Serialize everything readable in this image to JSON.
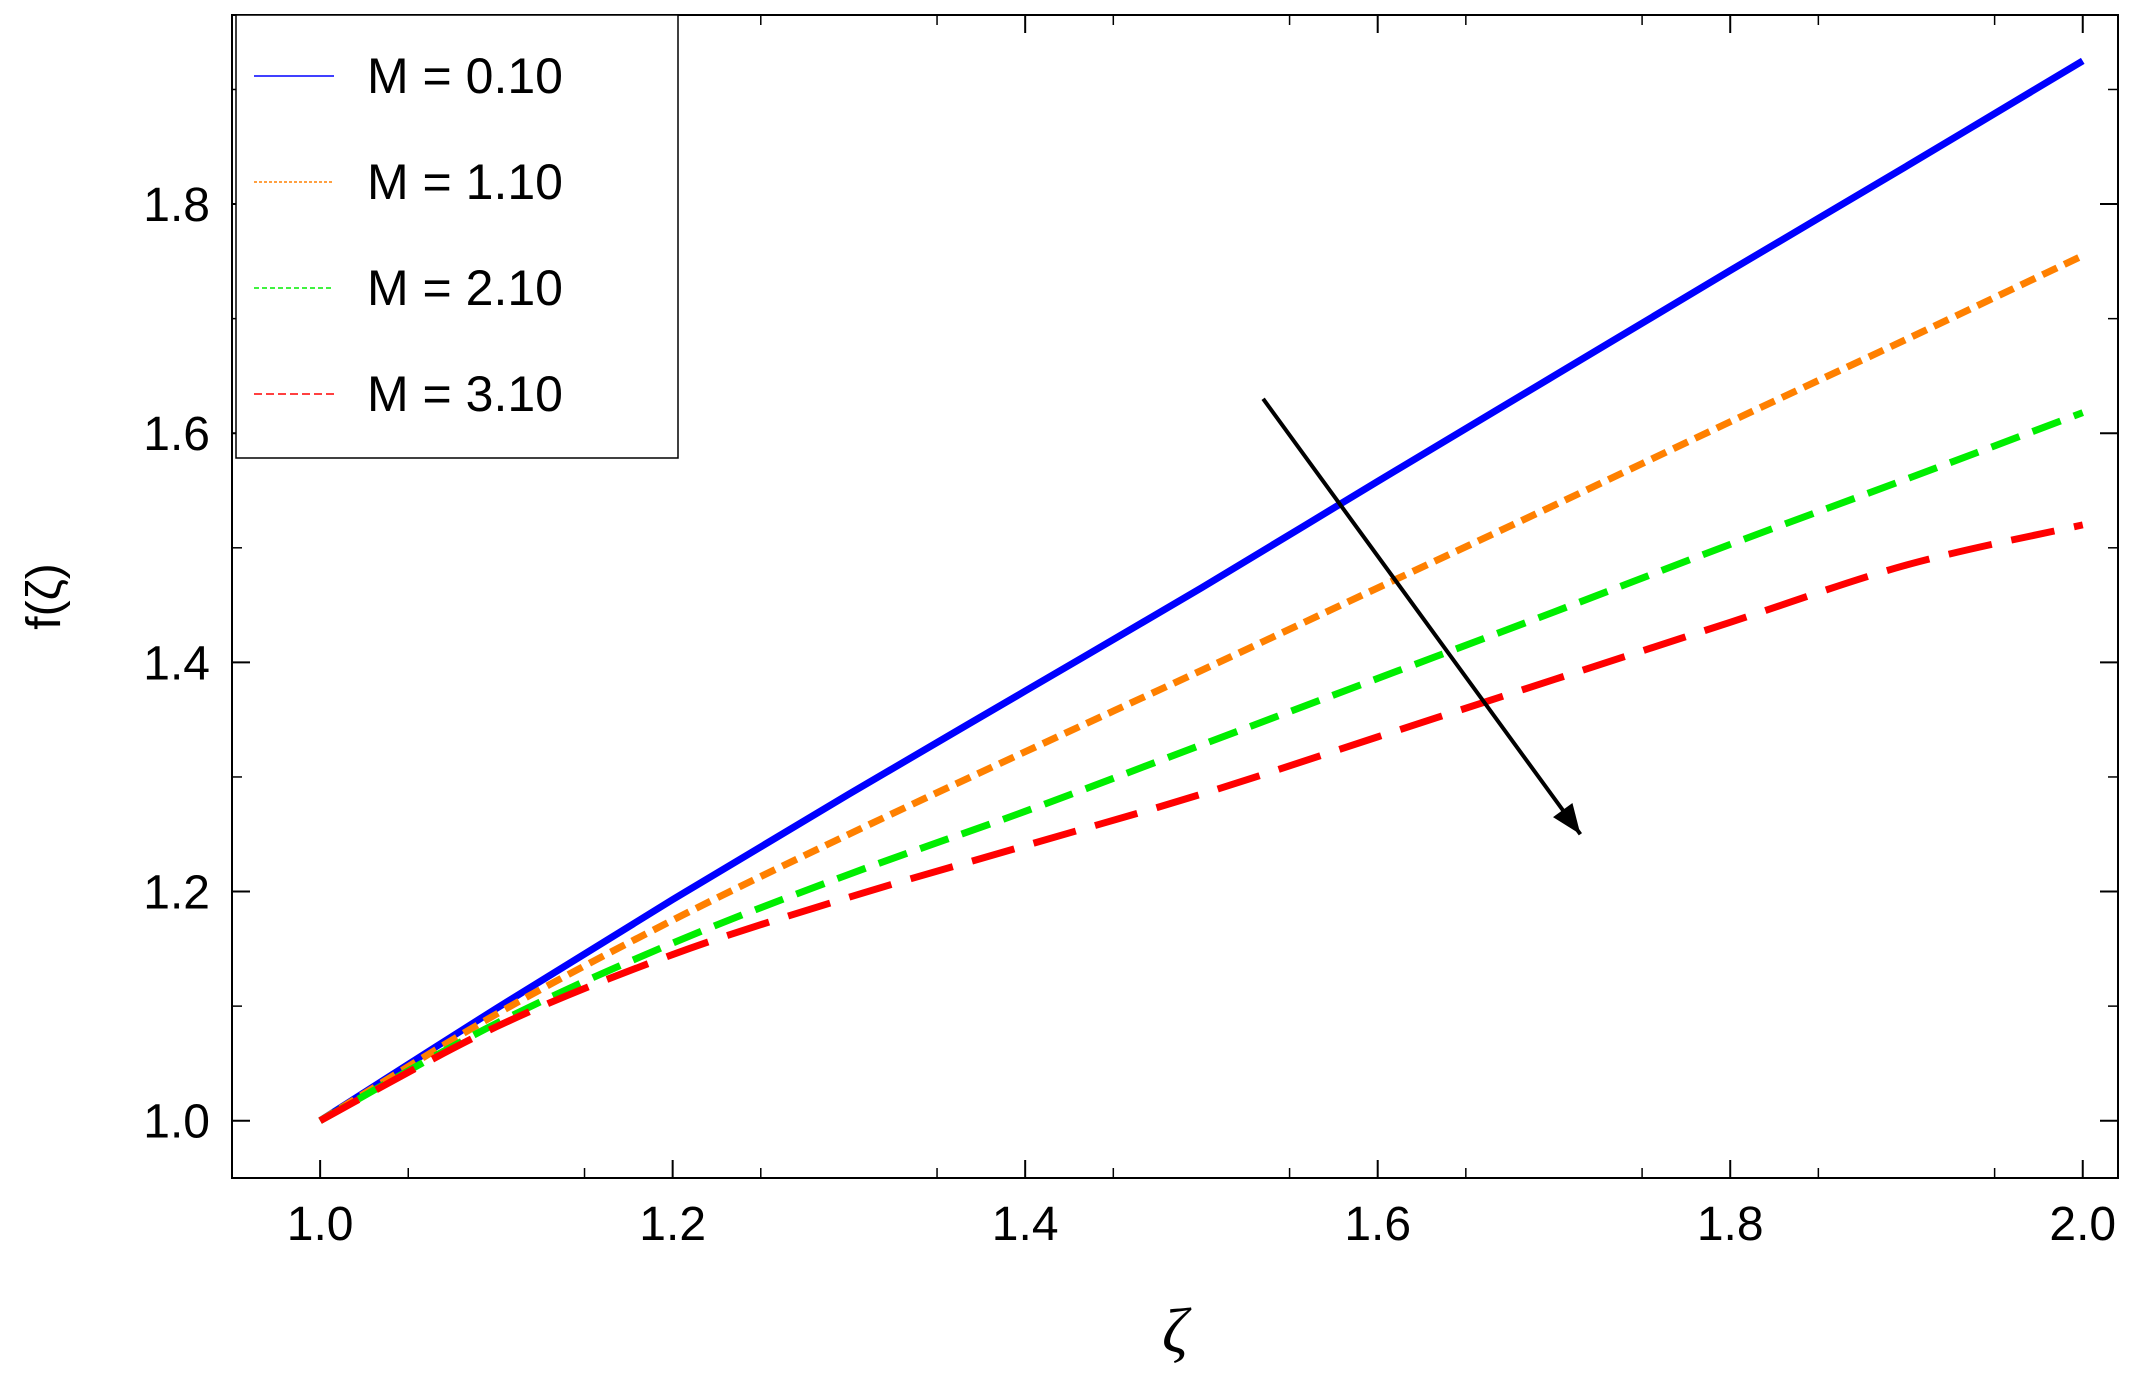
{
  "chart_data": {
    "type": "line",
    "title": "",
    "xlabel": "ζ",
    "ylabel": "f(ζ)",
    "xlim": [
      0.95,
      2.02
    ],
    "ylim": [
      0.95,
      1.965
    ],
    "x_ticks": [
      "1.0",
      "1.2",
      "1.4",
      "1.6",
      "1.8",
      "2.0"
    ],
    "y_ticks": [
      "1.0",
      "1.2",
      "1.4",
      "1.6",
      "1.8"
    ],
    "legend_position": "top-left",
    "series": [
      {
        "name": "M = 0.10",
        "color": "#0000ff",
        "dash": "solid",
        "x": [
          1.0,
          1.1,
          1.2,
          1.3,
          1.4,
          1.5,
          1.6,
          1.7,
          1.8,
          1.9,
          2.0
        ],
        "y": [
          1.0,
          1.098,
          1.193,
          1.285,
          1.375,
          1.465,
          1.558,
          1.65,
          1.742,
          1.833,
          1.925
        ]
      },
      {
        "name": "M = 1.10",
        "color": "#ff8000",
        "dash": "short",
        "x": [
          1.0,
          1.1,
          1.2,
          1.3,
          1.4,
          1.5,
          1.6,
          1.7,
          1.8,
          1.9,
          2.0
        ],
        "y": [
          1.0,
          1.093,
          1.175,
          1.25,
          1.322,
          1.393,
          1.465,
          1.537,
          1.61,
          1.682,
          1.755
        ]
      },
      {
        "name": "M = 2.10",
        "color": "#00ee00",
        "dash": "medium",
        "x": [
          1.0,
          1.1,
          1.2,
          1.3,
          1.4,
          1.5,
          1.6,
          1.7,
          1.8,
          1.9,
          2.0
        ],
        "y": [
          1.0,
          1.085,
          1.155,
          1.215,
          1.27,
          1.328,
          1.386,
          1.444,
          1.503,
          1.56,
          1.618
        ]
      },
      {
        "name": "M = 3.10",
        "color": "#ff0000",
        "dash": "long",
        "x": [
          1.0,
          1.1,
          1.2,
          1.3,
          1.4,
          1.5,
          1.6,
          1.7,
          1.8,
          1.9,
          2.0
        ],
        "y": [
          1.0,
          1.082,
          1.145,
          1.195,
          1.24,
          1.285,
          1.335,
          1.385,
          1.435,
          1.485,
          1.52
        ]
      }
    ],
    "annotation_arrow": {
      "from": [
        1.535,
        1.63
      ],
      "to": [
        1.715,
        1.25
      ],
      "meaning": "increasing M"
    }
  }
}
